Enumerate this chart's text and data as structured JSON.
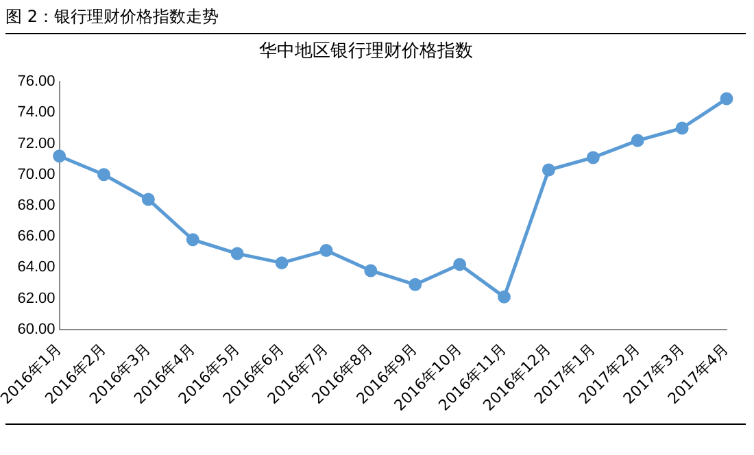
{
  "chart_data": {
    "type": "line",
    "title": "华中地区银行理财价格指数",
    "annotations": [
      "图 2：银行理财价格指数走势"
    ],
    "categories": [
      "2016年1月",
      "2016年2月",
      "2016年3月",
      "2016年4月",
      "2016年5月",
      "2016年6月",
      "2016年7月",
      "2016年8月",
      "2016年9月",
      "2016年10月",
      "2016年11月",
      "2016年12月",
      "2017年1月",
      "2017年2月",
      "2017年3月",
      "2017年4月"
    ],
    "series": [
      {
        "color": "#5b9bd5",
        "values": [
          71.2,
          70.0,
          68.4,
          65.8,
          64.9,
          64.3,
          65.1,
          63.8,
          62.9,
          64.2,
          62.1,
          70.3,
          71.1,
          72.2,
          73.0,
          74.9
        ]
      }
    ],
    "ylim": [
      60,
      76
    ],
    "yticks": [
      {
        "value": 60,
        "label": "60.00"
      },
      {
        "value": 62,
        "label": "62.00"
      },
      {
        "value": 64,
        "label": "64.00"
      },
      {
        "value": 66,
        "label": "66.00"
      },
      {
        "value": 68,
        "label": "68.00"
      },
      {
        "value": 70,
        "label": "70.00"
      },
      {
        "value": 72,
        "label": "72.00"
      },
      {
        "value": 74,
        "label": "74.00"
      },
      {
        "value": 76,
        "label": "76.00"
      }
    ],
    "grid": false,
    "legend": false,
    "marker": "circle",
    "line_style": "solid"
  }
}
